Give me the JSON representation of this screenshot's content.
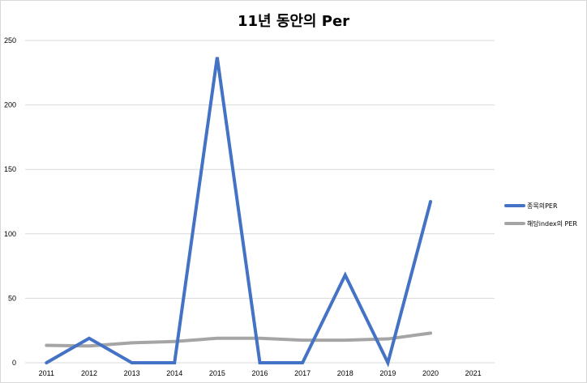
{
  "chart_data": {
    "type": "line",
    "title": "11년 동안의 Per",
    "categories": [
      "2011",
      "2012",
      "2013",
      "2014",
      "2015",
      "2016",
      "2017",
      "2018",
      "2019",
      "2020",
      "2021"
    ],
    "ylim": [
      0,
      250
    ],
    "yticks": [
      0,
      50,
      100,
      150,
      200,
      250
    ],
    "grid": true,
    "legend_position": "right",
    "series": [
      {
        "name": "종목의PER",
        "color": "#4472c4",
        "values": [
          0,
          19,
          0,
          0,
          237,
          0,
          0,
          68,
          0,
          125,
          null
        ]
      },
      {
        "name": "해당index의 PER",
        "color": "#a5a5a5",
        "values": [
          13.5,
          13,
          15.5,
          16.5,
          19,
          19,
          17.5,
          17.5,
          18.5,
          23,
          null
        ]
      }
    ]
  }
}
